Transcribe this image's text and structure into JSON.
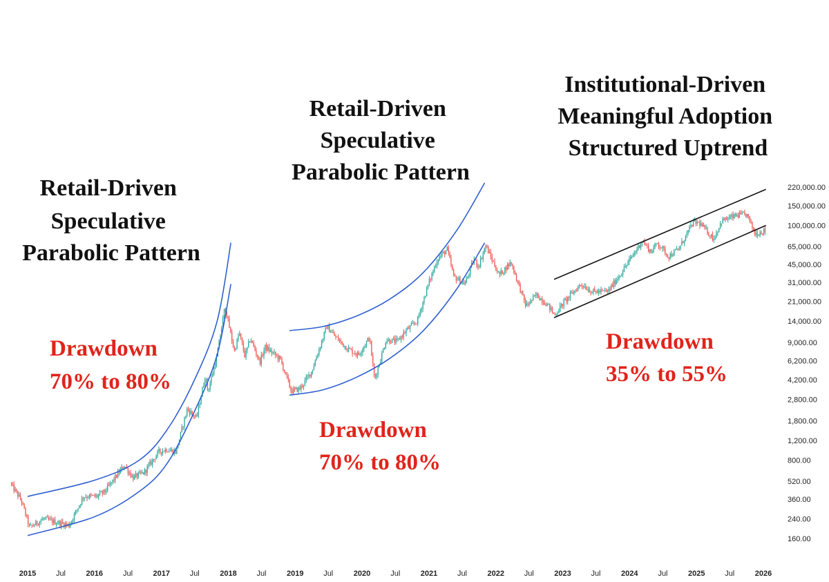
{
  "colors": {
    "background": "#ffffff",
    "candle_up": "#26a69a",
    "candle_down": "#ef5350",
    "parabola_curve": "#2e5fd0",
    "channel_line": "#111111",
    "drawdown_text": "#e0241b",
    "title_text": "#111111"
  },
  "annotations": {
    "cycle1_title": [
      "Retail-Driven",
      "Speculative",
      "Parabolic Pattern"
    ],
    "cycle2_title": [
      "Retail-Driven",
      "Speculative",
      "Parabolic Pattern"
    ],
    "cycle3_title": [
      "Institutional-Driven",
      "Meaningful Adoption",
      "Structured Uptrend"
    ],
    "cycle1_drawdown": [
      "Drawdown",
      "70% to 80%"
    ],
    "cycle2_drawdown": [
      "Drawdown",
      "70% to 80%"
    ],
    "cycle3_drawdown": [
      "Drawdown",
      "35% to 55%"
    ]
  },
  "chart_data": {
    "type": "candlestick",
    "scale": "log",
    "y_axis_position": "right",
    "ylim": [
      130,
      260000
    ],
    "xlim": [
      "2014-10-01",
      "2026-05-01"
    ],
    "y_ticks": [
      160,
      240,
      360,
      520,
      800,
      1200,
      1800,
      2800,
      4200,
      6200,
      9000,
      14000,
      21000,
      31000,
      45000,
      65000,
      100000,
      150000,
      220000
    ],
    "y_tick_labels": [
      "160.00",
      "240.00",
      "360.00",
      "520.00",
      "800.00",
      "1,200.00",
      "1,800.00",
      "2,800.00",
      "4,200.00",
      "6,200.00",
      "9,000.00",
      "14,000.00",
      "21,000.00",
      "31,000.00",
      "45,000.00",
      "65,000.00",
      "100,000.00",
      "150,000.00",
      "220,000.00"
    ],
    "x_ticks": [
      {
        "date": "2015-01-01",
        "label": "2015",
        "year": true
      },
      {
        "date": "2015-07-01",
        "label": "Jul",
        "year": false
      },
      {
        "date": "2016-01-01",
        "label": "2016",
        "year": true
      },
      {
        "date": "2016-07-01",
        "label": "Jul",
        "year": false
      },
      {
        "date": "2017-01-01",
        "label": "2017",
        "year": true
      },
      {
        "date": "2017-07-01",
        "label": "Jul",
        "year": false
      },
      {
        "date": "2018-01-01",
        "label": "2018",
        "year": true
      },
      {
        "date": "2018-07-01",
        "label": "Jul",
        "year": false
      },
      {
        "date": "2019-01-01",
        "label": "2019",
        "year": true
      },
      {
        "date": "2019-07-01",
        "label": "Jul",
        "year": false
      },
      {
        "date": "2020-01-01",
        "label": "2020",
        "year": true
      },
      {
        "date": "2020-07-01",
        "label": "Jul",
        "year": false
      },
      {
        "date": "2021-01-01",
        "label": "2021",
        "year": true
      },
      {
        "date": "2021-07-01",
        "label": "Jul",
        "year": false
      },
      {
        "date": "2022-01-01",
        "label": "2022",
        "year": true
      },
      {
        "date": "2022-07-01",
        "label": "Jul",
        "year": false
      },
      {
        "date": "2023-01-01",
        "label": "2023",
        "year": true
      },
      {
        "date": "2023-07-01",
        "label": "Jul",
        "year": false
      },
      {
        "date": "2024-01-01",
        "label": "2024",
        "year": true
      },
      {
        "date": "2024-07-01",
        "label": "Jul",
        "year": false
      },
      {
        "date": "2025-01-01",
        "label": "2025",
        "year": true
      },
      {
        "date": "2025-07-01",
        "label": "Jul",
        "year": false
      },
      {
        "date": "2026-01-01",
        "label": "2026",
        "year": true
      }
    ],
    "price_path": [
      {
        "date": "2014-10-01",
        "price": 500
      },
      {
        "date": "2014-12-01",
        "price": 350
      },
      {
        "date": "2015-01-15",
        "price": 200
      },
      {
        "date": "2015-04-01",
        "price": 240
      },
      {
        "date": "2015-06-01",
        "price": 225
      },
      {
        "date": "2015-08-20",
        "price": 210
      },
      {
        "date": "2015-11-05",
        "price": 380
      },
      {
        "date": "2016-01-15",
        "price": 380
      },
      {
        "date": "2016-03-01",
        "price": 420
      },
      {
        "date": "2016-06-15",
        "price": 720
      },
      {
        "date": "2016-08-01",
        "price": 560
      },
      {
        "date": "2016-10-01",
        "price": 620
      },
      {
        "date": "2016-12-20",
        "price": 950
      },
      {
        "date": "2017-02-01",
        "price": 1000
      },
      {
        "date": "2017-03-25",
        "price": 950
      },
      {
        "date": "2017-05-25",
        "price": 2300
      },
      {
        "date": "2017-07-15",
        "price": 1900
      },
      {
        "date": "2017-09-01",
        "price": 4600
      },
      {
        "date": "2017-09-15",
        "price": 3300
      },
      {
        "date": "2017-11-01",
        "price": 6500
      },
      {
        "date": "2017-12-17",
        "price": 19000
      },
      {
        "date": "2018-02-06",
        "price": 7500
      },
      {
        "date": "2018-03-05",
        "price": 11000
      },
      {
        "date": "2018-04-05",
        "price": 6800
      },
      {
        "date": "2018-05-05",
        "price": 9800
      },
      {
        "date": "2018-06-25",
        "price": 6000
      },
      {
        "date": "2018-07-25",
        "price": 8200
      },
      {
        "date": "2018-10-15",
        "price": 6400
      },
      {
        "date": "2018-12-15",
        "price": 3300
      },
      {
        "date": "2019-02-01",
        "price": 3500
      },
      {
        "date": "2019-04-05",
        "price": 5000
      },
      {
        "date": "2019-06-26",
        "price": 12500
      },
      {
        "date": "2019-08-15",
        "price": 10000
      },
      {
        "date": "2019-10-15",
        "price": 8000
      },
      {
        "date": "2019-12-15",
        "price": 7000
      },
      {
        "date": "2020-02-15",
        "price": 10000
      },
      {
        "date": "2020-03-13",
        "price": 4200
      },
      {
        "date": "2020-05-15",
        "price": 9500
      },
      {
        "date": "2020-07-15",
        "price": 9200
      },
      {
        "date": "2020-09-01",
        "price": 11500
      },
      {
        "date": "2020-11-01",
        "price": 14000
      },
      {
        "date": "2021-01-01",
        "price": 30000
      },
      {
        "date": "2021-02-20",
        "price": 50000
      },
      {
        "date": "2021-04-14",
        "price": 61000
      },
      {
        "date": "2021-05-19",
        "price": 35000
      },
      {
        "date": "2021-07-20",
        "price": 30000
      },
      {
        "date": "2021-09-07",
        "price": 50000
      },
      {
        "date": "2021-10-01",
        "price": 43000
      },
      {
        "date": "2021-11-10",
        "price": 66000
      },
      {
        "date": "2022-01-22",
        "price": 36000
      },
      {
        "date": "2022-03-28",
        "price": 47000
      },
      {
        "date": "2022-06-18",
        "price": 19000
      },
      {
        "date": "2022-08-15",
        "price": 24000
      },
      {
        "date": "2022-10-15",
        "price": 19500
      },
      {
        "date": "2022-11-21",
        "price": 15800
      },
      {
        "date": "2023-01-15",
        "price": 21000
      },
      {
        "date": "2023-04-15",
        "price": 30000
      },
      {
        "date": "2023-06-15",
        "price": 25500
      },
      {
        "date": "2023-09-10",
        "price": 25800
      },
      {
        "date": "2023-12-01",
        "price": 40000
      },
      {
        "date": "2024-03-14",
        "price": 73000
      },
      {
        "date": "2024-05-01",
        "price": 58000
      },
      {
        "date": "2024-06-05",
        "price": 70000
      },
      {
        "date": "2024-08-05",
        "price": 53000
      },
      {
        "date": "2024-10-01",
        "price": 62000
      },
      {
        "date": "2024-12-17",
        "price": 107000
      },
      {
        "date": "2025-01-20",
        "price": 105000
      },
      {
        "date": "2025-04-08",
        "price": 76000
      },
      {
        "date": "2025-05-22",
        "price": 110000
      },
      {
        "date": "2025-08-14",
        "price": 123000
      },
      {
        "date": "2025-10-06",
        "price": 125000
      },
      {
        "date": "2025-11-21",
        "price": 84000
      },
      {
        "date": "2026-01-10",
        "price": 90000
      }
    ],
    "overlays": {
      "cycle1_upper_curve": [
        {
          "date": "2015-01-01",
          "price": 380
        },
        {
          "date": "2016-01-01",
          "price": 530
        },
        {
          "date": "2016-09-01",
          "price": 800
        },
        {
          "date": "2017-02-01",
          "price": 1500
        },
        {
          "date": "2017-07-01",
          "price": 4200
        },
        {
          "date": "2017-11-01",
          "price": 14000
        },
        {
          "date": "2018-01-15",
          "price": 70000
        }
      ],
      "cycle1_lower_curve": [
        {
          "date": "2015-01-01",
          "price": 170
        },
        {
          "date": "2016-01-01",
          "price": 250
        },
        {
          "date": "2016-09-01",
          "price": 420
        },
        {
          "date": "2017-02-01",
          "price": 750
        },
        {
          "date": "2017-07-01",
          "price": 2200
        },
        {
          "date": "2017-11-01",
          "price": 7000
        },
        {
          "date": "2018-01-15",
          "price": 30000
        }
      ],
      "cycle2_upper_curve": [
        {
          "date": "2018-12-01",
          "price": 11500
        },
        {
          "date": "2019-06-01",
          "price": 12500
        },
        {
          "date": "2019-12-01",
          "price": 15500
        },
        {
          "date": "2020-06-01",
          "price": 22000
        },
        {
          "date": "2020-12-01",
          "price": 38000
        },
        {
          "date": "2021-06-01",
          "price": 90000
        },
        {
          "date": "2021-11-01",
          "price": 240000
        }
      ],
      "cycle2_lower_curve": [
        {
          "date": "2018-12-01",
          "price": 3050
        },
        {
          "date": "2019-06-01",
          "price": 3400
        },
        {
          "date": "2019-12-01",
          "price": 4400
        },
        {
          "date": "2020-06-01",
          "price": 6500
        },
        {
          "date": "2020-12-01",
          "price": 11500
        },
        {
          "date": "2021-06-01",
          "price": 27000
        },
        {
          "date": "2021-11-01",
          "price": 70000
        }
      ],
      "channel_upper": [
        {
          "date": "2022-11-15",
          "price": 33000
        },
        {
          "date": "2026-01-15",
          "price": 210000
        }
      ],
      "channel_lower": [
        {
          "date": "2022-11-15",
          "price": 15000
        },
        {
          "date": "2026-01-15",
          "price": 100000
        }
      ]
    }
  }
}
